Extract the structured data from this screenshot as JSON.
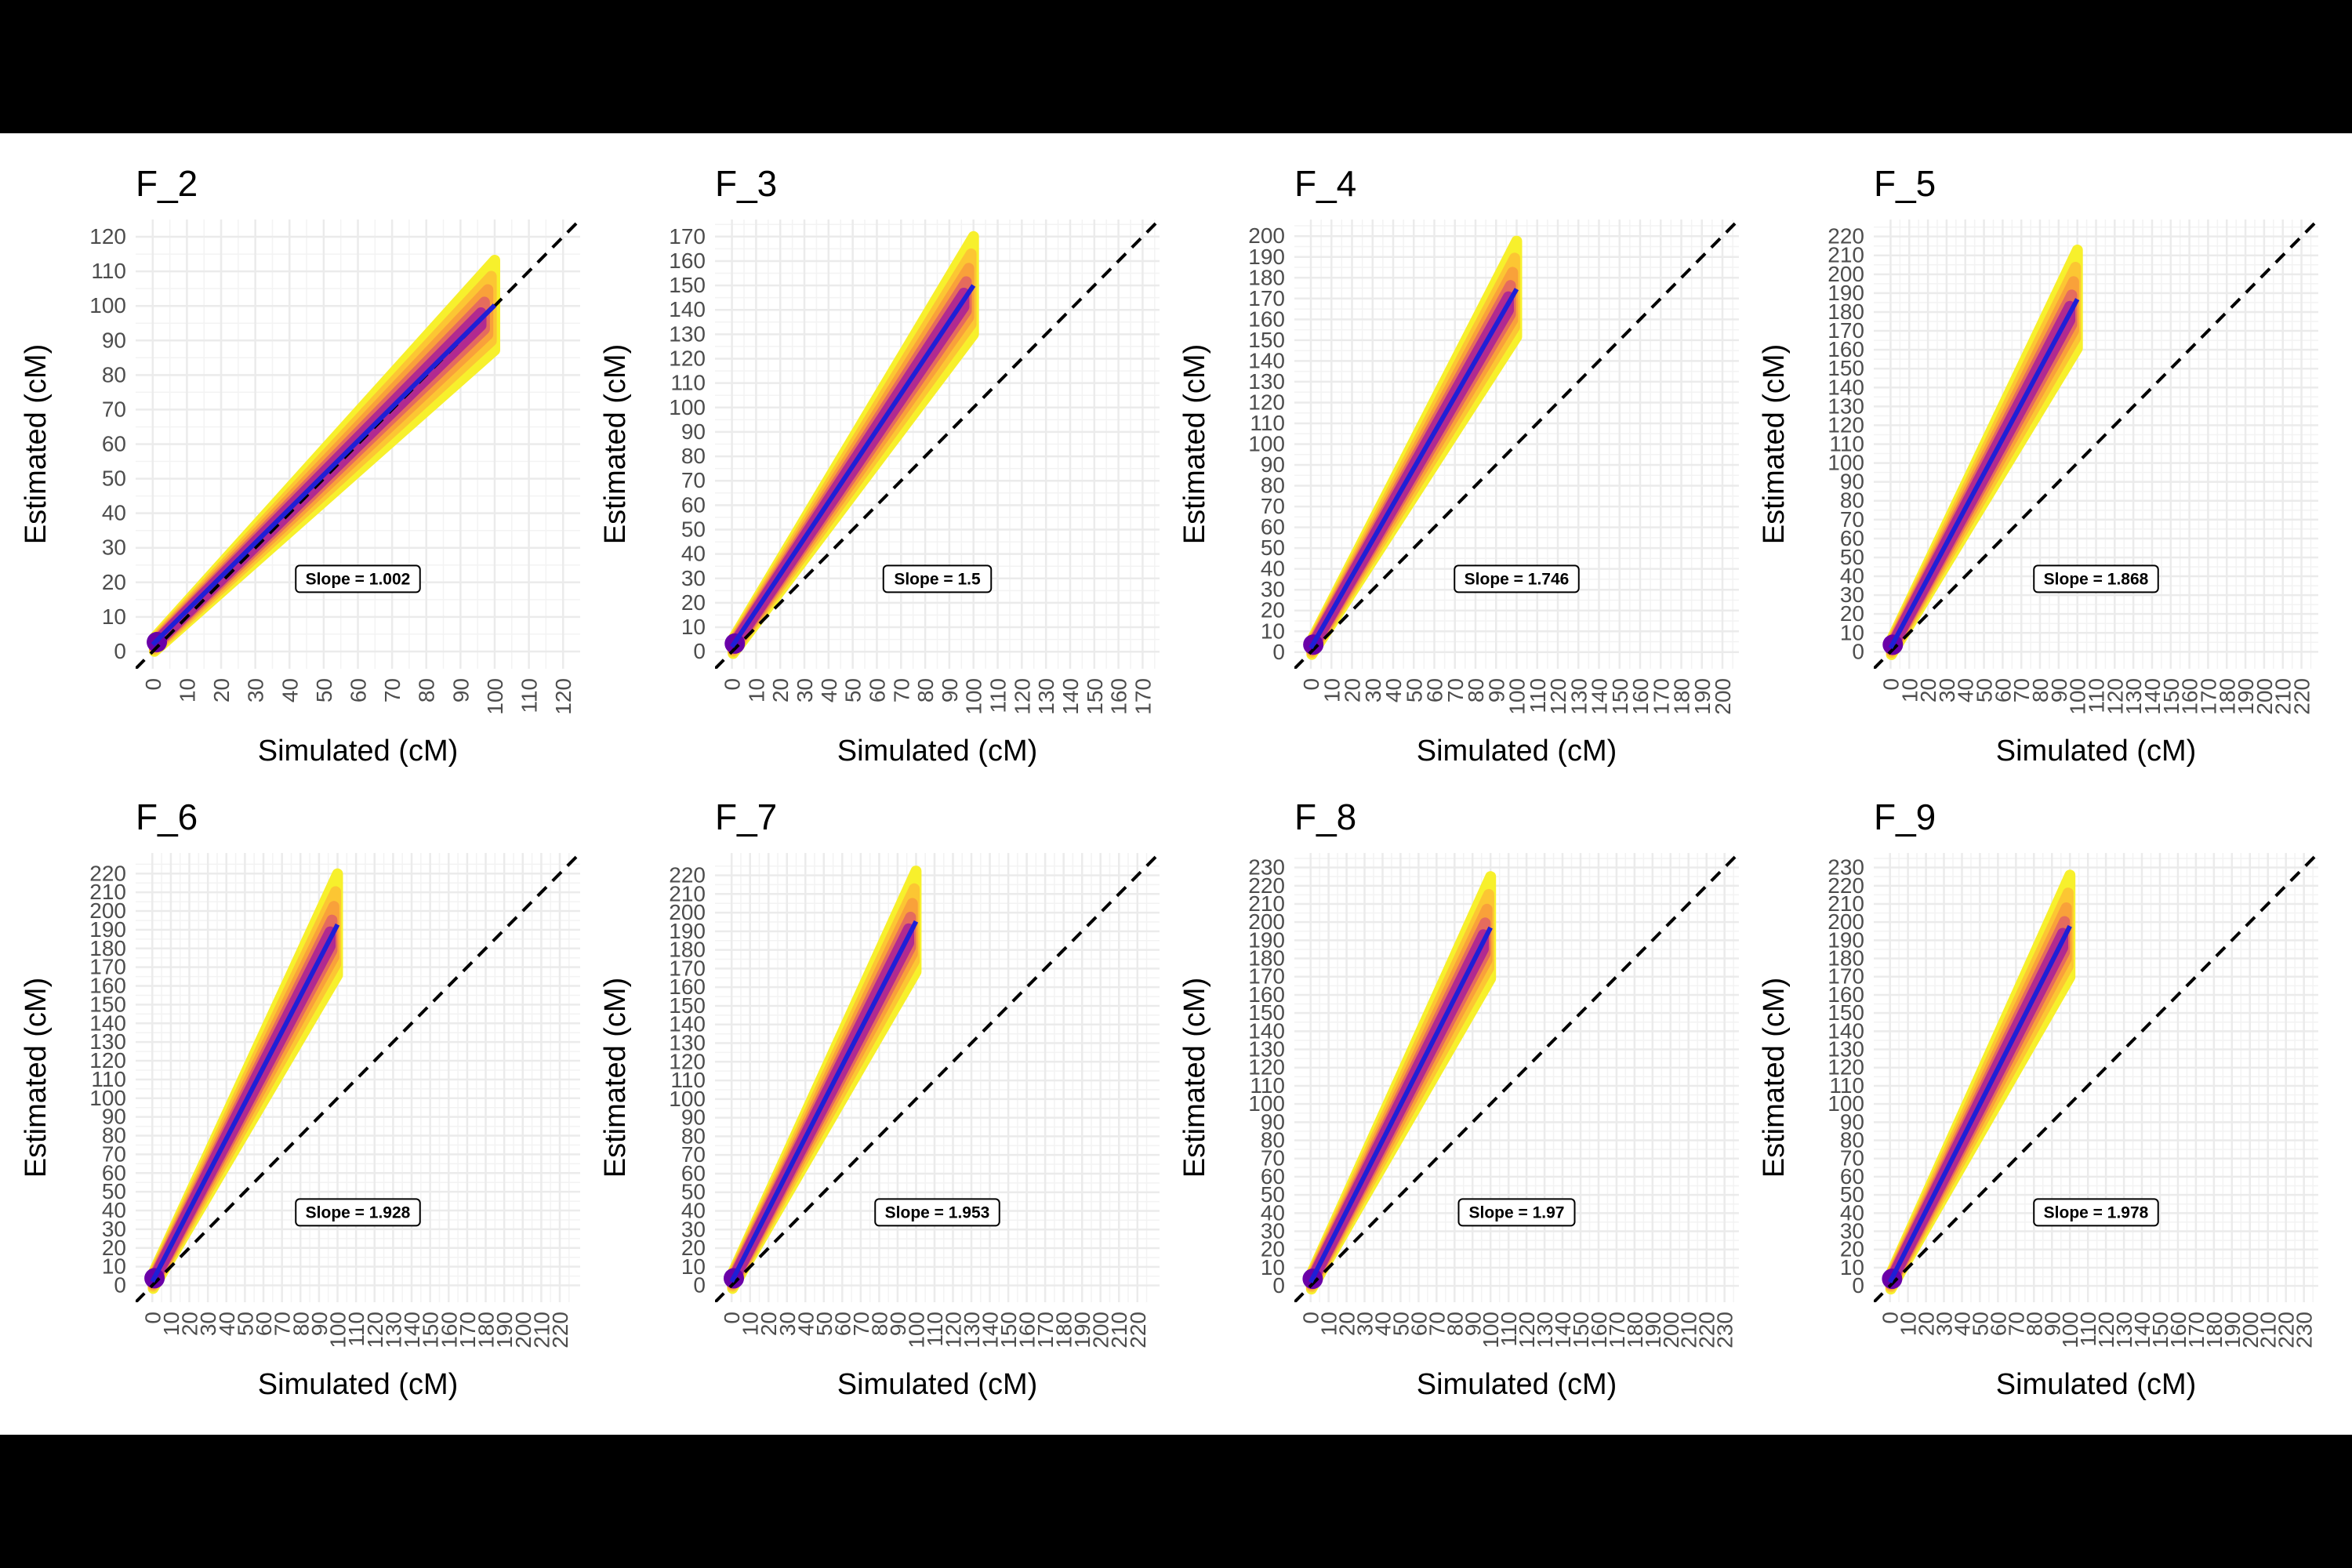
{
  "chart_data": [
    {
      "type": "scatter",
      "title": "F_2",
      "xlabel": "Simulated (cM)",
      "ylabel": "Estimated (cM)",
      "xlim": [
        -5,
        125
      ],
      "ylim": [
        -5,
        125
      ],
      "tick_step": 10,
      "tick_max": 120,
      "slope": 1.002,
      "annotation": "Slope = 1.002",
      "x_data_max": 100,
      "y_spread": 13,
      "reference_line": "y = x",
      "grid": true
    },
    {
      "type": "scatter",
      "title": "F_3",
      "xlabel": "Simulated (cM)",
      "ylabel": "Estimated (cM)",
      "xlim": [
        -7,
        177
      ],
      "ylim": [
        -7,
        177
      ],
      "tick_step": 10,
      "tick_max": 170,
      "slope": 1.5,
      "annotation": "Slope = 1.5",
      "x_data_max": 100,
      "y_spread": 20,
      "reference_line": "y = x",
      "grid": true
    },
    {
      "type": "scatter",
      "title": "F_4",
      "xlabel": "Simulated (cM)",
      "ylabel": "Estimated (cM)",
      "xlim": [
        -8,
        208
      ],
      "ylim": [
        -8,
        208
      ],
      "tick_step": 10,
      "tick_max": 200,
      "slope": 1.746,
      "annotation": "Slope = 1.746",
      "x_data_max": 100,
      "y_spread": 23,
      "reference_line": "y = x",
      "grid": true
    },
    {
      "type": "scatter",
      "title": "F_5",
      "xlabel": "Simulated (cM)",
      "ylabel": "Estimated (cM)",
      "xlim": [
        -9,
        229
      ],
      "ylim": [
        -9,
        229
      ],
      "tick_step": 10,
      "tick_max": 220,
      "slope": 1.868,
      "annotation": "Slope = 1.868",
      "x_data_max": 100,
      "y_spread": 26,
      "reference_line": "y = x",
      "grid": true
    },
    {
      "type": "scatter",
      "title": "F_6",
      "xlabel": "Simulated (cM)",
      "ylabel": "Estimated (cM)",
      "xlim": [
        -9,
        231
      ],
      "ylim": [
        -9,
        231
      ],
      "tick_step": 10,
      "tick_max": 220,
      "slope": 1.928,
      "annotation": "Slope = 1.928",
      "x_data_max": 100,
      "y_spread": 27,
      "reference_line": "y = x",
      "grid": true
    },
    {
      "type": "scatter",
      "title": "F_7",
      "xlabel": "Simulated (cM)",
      "ylabel": "Estimated (cM)",
      "xlim": [
        -9,
        232
      ],
      "ylim": [
        -9,
        232
      ],
      "tick_step": 10,
      "tick_max": 220,
      "slope": 1.953,
      "annotation": "Slope = 1.953",
      "x_data_max": 100,
      "y_spread": 27,
      "reference_line": "y = x",
      "grid": true
    },
    {
      "type": "scatter",
      "title": "F_8",
      "xlabel": "Simulated (cM)",
      "ylabel": "Estimated (cM)",
      "xlim": [
        -9,
        238
      ],
      "ylim": [
        -9,
        238
      ],
      "tick_step": 10,
      "tick_max": 230,
      "slope": 1.97,
      "annotation": "Slope = 1.97",
      "x_data_max": 100,
      "y_spread": 28,
      "reference_line": "y = x",
      "grid": true
    },
    {
      "type": "scatter",
      "title": "F_9",
      "xlabel": "Simulated (cM)",
      "ylabel": "Estimated (cM)",
      "xlim": [
        -9,
        238
      ],
      "ylim": [
        -9,
        238
      ],
      "tick_step": 10,
      "tick_max": 230,
      "slope": 1.978,
      "annotation": "Slope = 1.978",
      "x_data_max": 100,
      "y_spread": 28,
      "reference_line": "y = x",
      "grid": true
    }
  ],
  "colors": {
    "fit_line": "#1f1fd6",
    "reference_line": "#000000",
    "density_low": "#f7f02c",
    "density_mid_low": "#fcc633",
    "density_mid": "#f9a13a",
    "density_mid_high": "#e56b5d",
    "density_high": "#b12a90",
    "density_peak": "#6a00a8"
  }
}
